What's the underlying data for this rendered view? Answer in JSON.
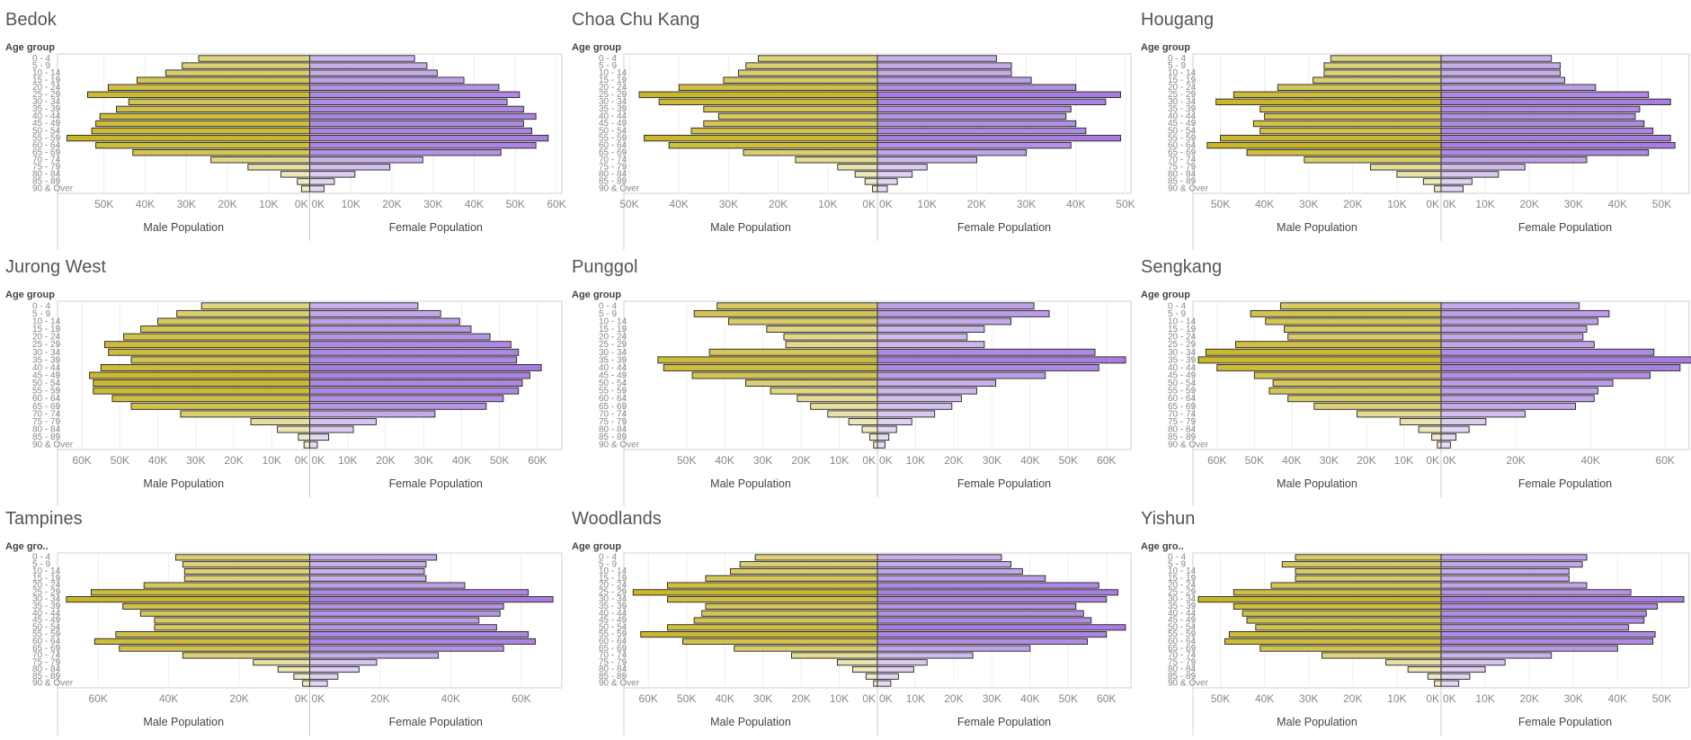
{
  "age_group_label": "Age group",
  "age_group_label_short": "Age gro..",
  "age_groups": [
    "0 - 4",
    "5 - 9",
    "10 - 14",
    "15 - 19",
    "20 - 24",
    "25 - 29",
    "30 - 34",
    "35 - 39",
    "40 - 44",
    "45 - 49",
    "50 - 54",
    "55 - 59",
    "60 - 64",
    "65 - 69",
    "70 - 74",
    "75 - 79",
    "80 - 84",
    "85 - 89",
    "90 & Over"
  ],
  "male_axis_title": "Male Population",
  "female_axis_title": "Female Population",
  "colors": {
    "male": "#c9b527",
    "male_pale": "#e8e0a8",
    "female": "#a77ddf",
    "female_pale": "#d9c6f0",
    "title": "#555555",
    "axis_text": "#666666",
    "border": "#d0d0d0"
  },
  "chart_data": [
    {
      "type": "bar",
      "title": "Bedok",
      "age_label_short": false,
      "male_ticks": [
        "50K",
        "40K",
        "30K",
        "20K",
        "10K",
        "0K"
      ],
      "female_ticks": [
        "0K",
        "10K",
        "20K",
        "30K",
        "40K",
        "50K",
        "60K"
      ],
      "xlim": [
        0,
        60000
      ],
      "male": [
        27000,
        31000,
        35000,
        42000,
        49000,
        54000,
        44000,
        47000,
        51000,
        52000,
        53000,
        59000,
        52000,
        43000,
        24000,
        15000,
        7000,
        3000,
        2000
      ],
      "female": [
        25500,
        28500,
        31000,
        37500,
        46000,
        51000,
        48000,
        52000,
        55000,
        52000,
        54000,
        58000,
        55000,
        46500,
        27500,
        19500,
        11000,
        6000,
        3500
      ]
    },
    {
      "type": "bar",
      "title": "Choa Chu Kang",
      "age_label_short": false,
      "male_ticks": [
        "50K",
        "40K",
        "30K",
        "20K",
        "10K",
        "0K"
      ],
      "female_ticks": [
        "0K",
        "10K",
        "20K",
        "30K",
        "40K",
        "50K"
      ],
      "xlim": [
        0,
        50000
      ],
      "male": [
        24000,
        26500,
        28000,
        31000,
        40000,
        48000,
        44000,
        35000,
        32000,
        35000,
        37500,
        47000,
        42000,
        27000,
        16500,
        8000,
        4500,
        2500,
        1000
      ],
      "female": [
        24000,
        27000,
        27000,
        31000,
        40000,
        49000,
        46000,
        39000,
        38000,
        40000,
        42000,
        49000,
        39000,
        30000,
        20000,
        10000,
        7000,
        4000,
        2000
      ]
    },
    {
      "type": "bar",
      "title": "Hougang",
      "age_label_short": false,
      "male_ticks": [
        "50K",
        "40K",
        "30K",
        "20K",
        "10K",
        "0K"
      ],
      "female_ticks": [
        "0K",
        "10K",
        "20K",
        "30K",
        "40K",
        "50K"
      ],
      "xlim": [
        0,
        55000
      ],
      "male": [
        25000,
        26500,
        26500,
        29000,
        37000,
        47000,
        51000,
        41000,
        40000,
        42500,
        41000,
        50000,
        53000,
        44000,
        31000,
        16000,
        10000,
        4000,
        1500
      ],
      "female": [
        25000,
        27000,
        27000,
        28000,
        35000,
        47000,
        52000,
        45000,
        44000,
        46000,
        48000,
        52000,
        53000,
        47000,
        33000,
        19000,
        13000,
        7000,
        5000
      ]
    },
    {
      "type": "bar",
      "title": "Jurong West",
      "age_label_short": false,
      "male_ticks": [
        "60K",
        "50K",
        "40K",
        "30K",
        "20K",
        "10K",
        "0K"
      ],
      "female_ticks": [
        "0K",
        "10K",
        "20K",
        "30K",
        "40K",
        "50K",
        "60K"
      ],
      "xlim": [
        0,
        65000
      ],
      "male": [
        28500,
        35000,
        40000,
        44500,
        49000,
        54000,
        53000,
        47000,
        55000,
        58000,
        57000,
        57000,
        52000,
        47000,
        34000,
        15500,
        8500,
        3000,
        1500
      ],
      "female": [
        28500,
        34500,
        39500,
        42500,
        47500,
        53000,
        55000,
        54500,
        61000,
        58000,
        56000,
        55000,
        51000,
        46500,
        33000,
        17500,
        11500,
        5000,
        2000
      ]
    },
    {
      "type": "bar",
      "title": "Punggol",
      "age_label_short": false,
      "male_ticks": [
        "50K",
        "40K",
        "30K",
        "20K",
        "10K",
        "0K"
      ],
      "female_ticks": [
        "0K",
        "10K",
        "20K",
        "30K",
        "40K",
        "50K",
        "60K"
      ],
      "xlim": [
        0,
        65000
      ],
      "male": [
        42000,
        48000,
        39000,
        29000,
        24500,
        24000,
        44000,
        57500,
        56000,
        48500,
        34500,
        28000,
        21000,
        17500,
        13000,
        7500,
        4000,
        2000,
        1000
      ],
      "female": [
        41000,
        45000,
        35000,
        28000,
        23500,
        28000,
        57000,
        65000,
        58000,
        44000,
        31000,
        26000,
        22000,
        19500,
        15000,
        9000,
        5000,
        3000,
        2000
      ]
    },
    {
      "type": "bar",
      "title": "Sengkang",
      "age_label_short": false,
      "male_ticks": [
        "60K",
        "50K",
        "40K",
        "30K",
        "20K",
        "10K",
        "0K"
      ],
      "female_ticks": [
        "0K",
        "20K",
        "40K",
        "60K"
      ],
      "xlim": [
        0,
        65000
      ],
      "male": [
        43000,
        51000,
        47000,
        42000,
        41000,
        55000,
        63000,
        65000,
        60000,
        50000,
        45000,
        46000,
        41000,
        34000,
        22500,
        11000,
        6000,
        2500,
        1000
      ],
      "female": [
        37000,
        45000,
        42000,
        39000,
        38000,
        41000,
        57000,
        67000,
        64000,
        56000,
        46000,
        42000,
        41000,
        36000,
        22500,
        12000,
        7500,
        4000,
        2500
      ]
    },
    {
      "type": "bar",
      "title": "Tampines",
      "age_label_short": true,
      "male_ticks": [
        "60K",
        "40K",
        "20K",
        "0K"
      ],
      "female_ticks": [
        "0K",
        "20K",
        "40K",
        "60K"
      ],
      "xlim": [
        0,
        70000
      ],
      "male": [
        38000,
        36000,
        35500,
        35500,
        47000,
        62000,
        69000,
        53000,
        48000,
        44000,
        44000,
        55000,
        61000,
        54000,
        36000,
        16000,
        9000,
        4500,
        2000
      ],
      "female": [
        36000,
        33000,
        32500,
        33000,
        44000,
        62000,
        69000,
        55000,
        54000,
        48000,
        53000,
        62000,
        64000,
        55000,
        36500,
        19000,
        14000,
        8000,
        5000
      ]
    },
    {
      "type": "bar",
      "title": "Woodlands",
      "age_label_short": false,
      "male_ticks": [
        "60K",
        "50K",
        "40K",
        "30K",
        "20K",
        "10K",
        "0K"
      ],
      "female_ticks": [
        "0K",
        "10K",
        "20K",
        "30K",
        "40K",
        "50K",
        "60K"
      ],
      "xlim": [
        0,
        65000
      ],
      "male": [
        32000,
        36000,
        38500,
        45000,
        55000,
        64000,
        55000,
        45000,
        46000,
        48000,
        55000,
        62000,
        51000,
        37500,
        22500,
        10500,
        6500,
        3000,
        1000
      ],
      "female": [
        32500,
        35000,
        38000,
        44000,
        58000,
        63000,
        60000,
        52000,
        54000,
        56000,
        65000,
        60000,
        55000,
        40000,
        25000,
        13000,
        9500,
        5500,
        3500
      ]
    },
    {
      "type": "bar",
      "title": "Yishun",
      "age_label_short": true,
      "male_ticks": [
        "50K",
        "40K",
        "30K",
        "20K",
        "10K",
        "0K"
      ],
      "female_ticks": [
        "0K",
        "10K",
        "20K",
        "30K",
        "40K",
        "50K"
      ],
      "xlim": [
        0,
        55000
      ],
      "male": [
        33000,
        36000,
        33000,
        33000,
        38500,
        47000,
        55000,
        47000,
        45000,
        44000,
        42000,
        48000,
        49000,
        41000,
        27000,
        12500,
        7500,
        3000,
        1500
      ],
      "female": [
        33000,
        32000,
        29000,
        29000,
        33000,
        43000,
        55000,
        49000,
        46500,
        46000,
        42500,
        48500,
        48000,
        40000,
        25000,
        14500,
        10000,
        6500,
        4000
      ]
    }
  ]
}
